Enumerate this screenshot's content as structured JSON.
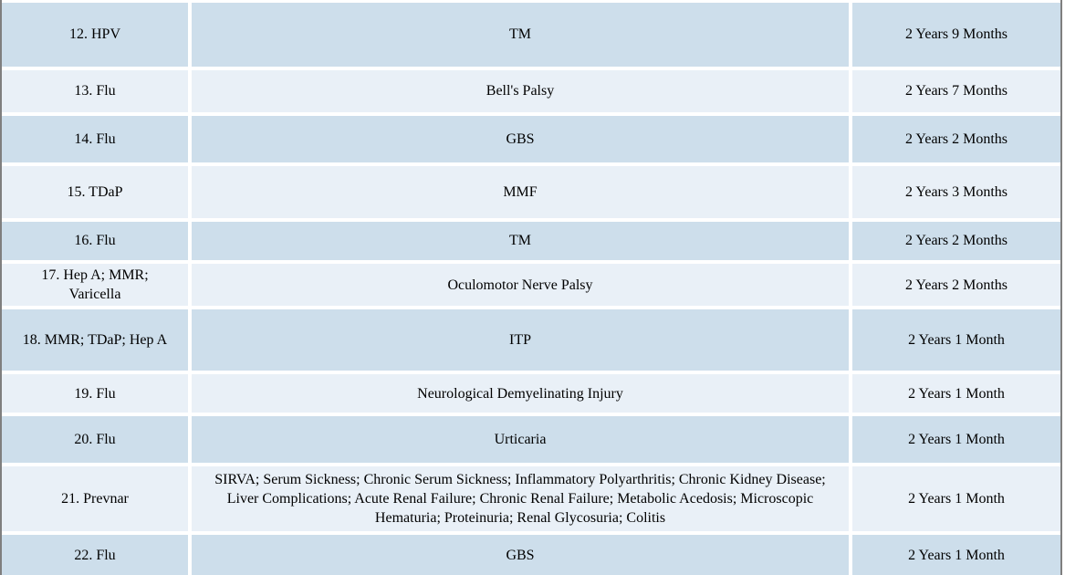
{
  "table": {
    "rows": [
      {
        "vaccine": "12. HPV",
        "injury": "TM",
        "duration": "2 Years 9 Months"
      },
      {
        "vaccine": "13. Flu",
        "injury": "Bell's Palsy",
        "duration": "2 Years 7 Months"
      },
      {
        "vaccine": "14. Flu",
        "injury": "GBS",
        "duration": "2 Years 2 Months"
      },
      {
        "vaccine": "15. TDaP",
        "injury": "MMF",
        "duration": "2 Years 3 Months"
      },
      {
        "vaccine": "16. Flu",
        "injury": "TM",
        "duration": "2 Years 2 Months"
      },
      {
        "vaccine": "17. Hep A; MMR; Varicella",
        "injury": "Oculomotor Nerve Palsy",
        "duration": "2 Years 2 Months"
      },
      {
        "vaccine": "18. MMR; TDaP; Hep A",
        "injury": "ITP",
        "duration": "2 Years 1 Month"
      },
      {
        "vaccine": "19. Flu",
        "injury": "Neurological Demyelinating Injury",
        "duration": "2 Years 1 Month"
      },
      {
        "vaccine": "20. Flu",
        "injury": "Urticaria",
        "duration": "2 Years 1 Month"
      },
      {
        "vaccine": "21. Prevnar",
        "injury": "SIRVA; Serum Sickness; Chronic Serum Sickness; Inflammatory Polyarthritis; Chronic Kidney Disease; Liver Complications; Acute Renal Failure; Chronic Renal Failure; Metabolic Acedosis; Microscopic Hematuria; Proteinuria; Renal Glycosuria; Colitis",
        "duration": "2 Years 1 Month"
      },
      {
        "vaccine": "22. Flu",
        "injury": "GBS",
        "duration": "2 Years 1 Month"
      }
    ],
    "colors": {
      "row_dark": "#cddeeb",
      "row_light": "#e9f0f7",
      "cell_gap": "#ffffff",
      "outer_border": "#7f7f7f",
      "text": "#000000"
    }
  }
}
